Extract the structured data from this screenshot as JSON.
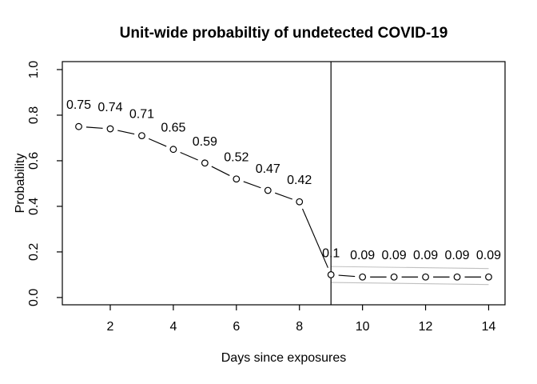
{
  "chart_data": {
    "type": "line",
    "title": "Unit-wide probabiltiy of undetected COVID-19",
    "xlabel": "Days since exposures",
    "ylabel": "Probability",
    "x": [
      1,
      2,
      3,
      4,
      5,
      6,
      7,
      8,
      9,
      10,
      11,
      12,
      13,
      14
    ],
    "values": [
      0.75,
      0.74,
      0.71,
      0.65,
      0.59,
      0.52,
      0.47,
      0.42,
      0.1,
      0.09,
      0.09,
      0.09,
      0.09,
      0.09
    ],
    "point_labels": [
      "0.75",
      "0.74",
      "0.71",
      "0.65",
      "0.59",
      "0.52",
      "0.47",
      "0.42",
      "0.1",
      "0.09",
      "0.09",
      "0.09",
      "0.09",
      "0.09"
    ],
    "xticks": [
      2,
      4,
      6,
      8,
      10,
      12,
      14
    ],
    "ytick_labels": [
      "0.0",
      "0.2",
      "0.4",
      "0.6",
      "0.8",
      "1.0"
    ],
    "xlim": [
      0.48,
      14.52
    ],
    "ylim": [
      -0.032,
      1.035
    ],
    "grid": false,
    "legend": null,
    "marker": "open-circle",
    "vline_x": 9,
    "ci_band": {
      "x": [
        9,
        14
      ],
      "upper": [
        0.136,
        0.127
      ],
      "lower": [
        0.066,
        0.057
      ]
    },
    "colors": {
      "series": "#000000",
      "axis": "#000000",
      "ci_band": "#c0c0c0",
      "background": "#ffffff"
    }
  }
}
